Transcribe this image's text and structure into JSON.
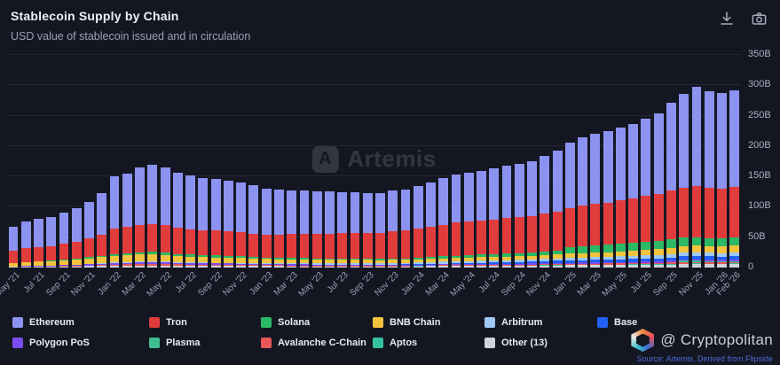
{
  "header": {
    "title": "Stablecoin Supply by Chain",
    "subtitle": "USD value of stablecoin issued and in circulation"
  },
  "toolbar": {
    "icons": [
      "download-icon",
      "camera-icon"
    ]
  },
  "watermark": {
    "text": "Artemis"
  },
  "footer": {
    "brand": "@ Cryptopolitan",
    "source": "Source: Artemis, Derived from Flipside"
  },
  "chart_data": {
    "type": "bar",
    "stacked": true,
    "title": "Stablecoin Supply by Chain",
    "subtitle": "USD value of stablecoin issued and in circulation",
    "grid": true,
    "legend_position": "bottom",
    "ylim": [
      0,
      350
    ],
    "yticks": [
      0,
      50,
      100,
      150,
      200,
      250,
      300,
      350
    ],
    "ytick_labels": [
      "0",
      "50B",
      "100B",
      "150B",
      "200B",
      "250B",
      "300B",
      "350B"
    ],
    "tick_every": 2,
    "x": [
      "May '21",
      "Jun '21",
      "Jul '21",
      "Aug '21",
      "Sep '21",
      "Oct '21",
      "Nov '21",
      "Dec '21",
      "Jan '22",
      "Feb '22",
      "Mar '22",
      "Apr '22",
      "May '22",
      "Jun '22",
      "Jul '22",
      "Aug '22",
      "Sep '22",
      "Oct '22",
      "Nov '22",
      "Dec '22",
      "Jan '23",
      "Feb '23",
      "Mar '23",
      "Apr '23",
      "May '23",
      "Jun '23",
      "Jul '23",
      "Aug '23",
      "Sep '23",
      "Oct '23",
      "Nov '23",
      "Dec '23",
      "Jan '24",
      "Feb '24",
      "Mar '24",
      "Apr '24",
      "May '24",
      "Jun '24",
      "Jul '24",
      "Aug '24",
      "Sep '24",
      "Oct '24",
      "Nov '24",
      "Dec '24",
      "Jan '25",
      "Feb '25",
      "Mar '25",
      "Apr '25",
      "May '25",
      "Jun '25",
      "Jul '25",
      "Aug '25",
      "Sep '25",
      "Oct '25",
      "Nov '25",
      "Dec '25",
      "Jan '26",
      "Feb '26"
    ],
    "series": [
      {
        "name": "Ethereum",
        "color": "#8c92f0",
        "values": [
          40,
          44,
          46,
          48,
          51,
          55,
          60,
          68,
          85,
          88,
          95,
          97,
          95,
          90,
          88,
          86,
          85,
          84,
          82,
          80,
          76,
          75,
          72,
          71,
          70,
          69,
          68,
          67,
          66,
          65,
          67,
          68,
          70,
          73,
          77,
          80,
          81,
          82,
          84,
          86,
          88,
          90,
          96,
          102,
          108,
          112,
          115,
          117,
          120,
          123,
          127,
          132,
          145,
          155,
          163,
          160,
          158,
          160
        ]
      },
      {
        "name": "Tron",
        "color": "#e13c3c",
        "values": [
          20,
          22,
          23,
          24,
          26,
          28,
          31,
          35,
          42,
          43,
          45,
          46,
          45,
          43,
          42,
          41,
          41,
          40,
          40,
          39,
          38,
          38,
          39,
          40,
          41,
          41,
          42,
          42,
          43,
          43,
          45,
          46,
          48,
          50,
          52,
          54,
          55,
          56,
          57,
          58,
          59,
          60,
          62,
          63,
          65,
          67,
          68,
          69,
          71,
          73,
          76,
          78,
          80,
          82,
          84,
          82,
          81,
          82
        ]
      },
      {
        "name": "Solana",
        "color": "#2bb966",
        "values": [
          0.7,
          0.8,
          0.9,
          1,
          1.2,
          1.5,
          2,
          2.5,
          3.5,
          3.8,
          4,
          4.2,
          4,
          3.5,
          3.3,
          3.2,
          3.1,
          3,
          2.8,
          2.5,
          2.3,
          2.2,
          2.1,
          2,
          1.9,
          1.9,
          1.8,
          1.8,
          1.7,
          1.7,
          1.8,
          1.9,
          2.5,
          3,
          3.5,
          4,
          4.2,
          4.5,
          4.8,
          5,
          5.2,
          5.5,
          6,
          6.5,
          10,
          11,
          12,
          12.5,
          13,
          13,
          13.5,
          13.5,
          14,
          14,
          14,
          13.5,
          13.5,
          14
        ]
      },
      {
        "name": "BNB Chain",
        "color": "#f2c33c",
        "values": [
          5,
          6,
          6.5,
          7,
          7.5,
          8,
          9,
          10,
          11,
          11.5,
          12,
          12,
          11,
          10,
          9.5,
          9,
          8.8,
          8.5,
          8,
          7.5,
          7,
          6.8,
          6.5,
          6.2,
          6,
          5.8,
          5.6,
          5.4,
          5.2,
          5,
          5,
          5,
          5,
          5,
          5.2,
          5.4,
          5.5,
          5.6,
          5.7,
          5.8,
          5.9,
          6,
          6.2,
          6.5,
          7,
          7.2,
          7.5,
          7.7,
          8,
          8.5,
          9,
          9.5,
          10,
          10.5,
          11,
          11,
          11,
          11.5
        ]
      },
      {
        "name": "Arbitrum",
        "color": "#9ec9f5",
        "values": [
          0,
          0,
          0,
          0.1,
          0.2,
          0.3,
          0.4,
          0.5,
          0.6,
          0.7,
          0.8,
          0.9,
          1,
          1,
          1,
          1.1,
          1.1,
          1.2,
          1.2,
          1.1,
          1.2,
          1.5,
          1.8,
          2,
          2.2,
          2.3,
          2.4,
          2.5,
          2.5,
          2.5,
          2.6,
          2.7,
          2.8,
          3,
          3.2,
          3.3,
          3.4,
          3.4,
          3.5,
          3.5,
          3.6,
          3.6,
          3.8,
          4,
          4.2,
          4.4,
          4.5,
          4.6,
          4.8,
          5,
          5.2,
          5.4,
          5.6,
          5.8,
          6,
          5.8,
          5.8,
          6
        ]
      },
      {
        "name": "Base",
        "color": "#2360f5",
        "values": [
          0,
          0,
          0,
          0,
          0,
          0,
          0,
          0,
          0,
          0,
          0,
          0,
          0,
          0,
          0,
          0,
          0,
          0,
          0,
          0,
          0,
          0,
          0,
          0,
          0,
          0,
          0,
          0.1,
          0.2,
          0.3,
          0.4,
          0.5,
          0.7,
          0.9,
          1.2,
          1.5,
          1.8,
          2,
          2.3,
          2.5,
          2.8,
          3,
          3.3,
          3.6,
          4,
          4.2,
          4.3,
          4.4,
          4.5,
          4.6,
          4.8,
          5,
          5.2,
          5.4,
          5.5,
          5.4,
          5.4,
          5.5
        ]
      },
      {
        "name": "Polygon PoS",
        "color": "#7b4df0",
        "values": [
          1,
          1.2,
          1.4,
          1.5,
          1.7,
          1.9,
          2.1,
          2.3,
          2.5,
          2.6,
          2.8,
          2.9,
          2.8,
          2.6,
          2.5,
          2.4,
          2.3,
          2.2,
          2.1,
          2,
          1.9,
          1.9,
          1.8,
          1.8,
          1.7,
          1.7,
          1.6,
          1.6,
          1.5,
          1.5,
          1.5,
          1.5,
          1.5,
          1.5,
          1.6,
          1.6,
          1.6,
          1.7,
          1.7,
          1.7,
          1.8,
          1.8,
          1.9,
          2,
          2,
          2,
          2.1,
          2.1,
          2.2,
          2.2,
          2.3,
          2.3,
          2.4,
          2.4,
          2.5,
          2.4,
          2.4,
          2.5
        ]
      },
      {
        "name": "Plasma",
        "color": "#3fbf8f",
        "values": [
          0,
          0,
          0,
          0,
          0,
          0,
          0,
          0,
          0,
          0,
          0,
          0,
          0,
          0,
          0,
          0,
          0,
          0,
          0,
          0,
          0,
          0,
          0,
          0,
          0,
          0,
          0,
          0,
          0,
          0,
          0,
          0,
          0,
          0,
          0,
          0,
          0,
          0,
          0,
          0,
          0,
          0,
          0,
          0,
          0,
          0,
          0,
          0,
          0,
          0,
          0,
          0,
          1,
          2.5,
          2.2,
          1.9,
          1.8,
          1.9
        ]
      },
      {
        "name": "Avalanche C-Chain",
        "color": "#e85858",
        "values": [
          0.2,
          0.3,
          0.4,
          0.5,
          0.7,
          0.9,
          1.2,
          1.5,
          2,
          2.2,
          2.5,
          2.6,
          2.5,
          2.2,
          2,
          1.9,
          1.8,
          1.8,
          1.7,
          1.6,
          1.5,
          1.4,
          1.4,
          1.3,
          1.3,
          1.2,
          1.2,
          1.1,
          1.1,
          1.1,
          1.1,
          1.1,
          1.1,
          1.2,
          1.2,
          1.3,
          1.3,
          1.3,
          1.4,
          1.4,
          1.4,
          1.5,
          1.5,
          1.6,
          1.7,
          1.7,
          1.8,
          1.8,
          1.9,
          1.9,
          2,
          2,
          2.1,
          2.1,
          2.2,
          2.1,
          2.1,
          2.2
        ]
      },
      {
        "name": "Aptos",
        "color": "#35c2a0",
        "values": [
          0,
          0,
          0,
          0,
          0,
          0,
          0,
          0,
          0,
          0,
          0,
          0,
          0,
          0,
          0,
          0,
          0,
          0,
          0,
          0,
          0,
          0,
          0,
          0,
          0,
          0,
          0,
          0,
          0,
          0,
          0,
          0,
          0.1,
          0.1,
          0.15,
          0.2,
          0.2,
          0.25,
          0.3,
          0.3,
          0.35,
          0.4,
          0.5,
          0.6,
          0.6,
          0.7,
          0.7,
          0.8,
          0.8,
          0.9,
          0.9,
          1,
          1,
          1.1,
          1.2,
          1.2,
          1.2,
          1.3
        ]
      },
      {
        "name": "Other (13)",
        "color": "#cfd3da",
        "values": [
          1,
          1.2,
          1.4,
          1.5,
          1.7,
          2,
          2.3,
          2.7,
          3,
          3.2,
          3.5,
          3.6,
          3.5,
          3.2,
          3,
          2.9,
          2.8,
          2.7,
          2.6,
          2.5,
          2.4,
          2.3,
          2.2,
          2.2,
          2.1,
          2.1,
          2,
          2,
          2,
          2,
          2,
          2.1,
          2.2,
          2.3,
          2.4,
          2.5,
          2.6,
          2.7,
          2.8,
          2.9,
          3,
          3.1,
          3.3,
          3.5,
          3.7,
          3.8,
          4,
          4.1,
          4.3,
          4.5,
          4.7,
          4.9,
          5.1,
          5.3,
          5.5,
          5.4,
          5.4,
          5.5
        ]
      }
    ]
  }
}
